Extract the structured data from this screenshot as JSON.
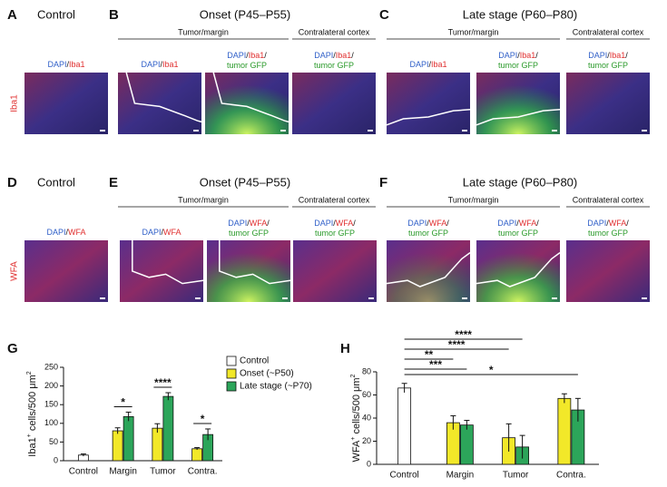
{
  "panels": [
    {
      "letter": "A",
      "title": "Control",
      "side_label": "Iba1",
      "images": [
        [
          "DAPI",
          "/",
          "Iba1"
        ]
      ]
    },
    {
      "letter": "B",
      "title": "Onset (P45–P55)",
      "groups": [
        "Tumor/margin",
        "Contralateral cortex"
      ],
      "images": [
        [
          "DAPI",
          "/",
          "Iba1"
        ],
        [
          "DAPI",
          "/",
          "Iba1",
          "/",
          "tumor GFP"
        ],
        [
          "DAPI",
          "/",
          "Iba1",
          "/",
          "tumor GFP"
        ]
      ]
    },
    {
      "letter": "C",
      "title": "Late stage (P60–P80)",
      "groups": [
        "Tumor/margin",
        "Contralateral cortex"
      ],
      "images": [
        [
          "DAPI",
          "/",
          "Iba1"
        ],
        [
          "DAPI",
          "/",
          "Iba1",
          "/",
          "tumor GFP"
        ],
        [
          "DAPI",
          "/",
          "Iba1",
          "/",
          "tumor GFP"
        ]
      ]
    },
    {
      "letter": "D",
      "title": "Control",
      "side_label": "WFA",
      "images": [
        [
          "DAPI",
          "/",
          "WFA"
        ]
      ]
    },
    {
      "letter": "E",
      "title": "Onset (P45–P55)",
      "groups": [
        "Tumor/margin",
        "Contralateral cortex"
      ],
      "images": [
        [
          "DAPI",
          "/",
          "WFA"
        ],
        [
          "DAPI",
          "/",
          "WFA",
          "/",
          "tumor GFP"
        ],
        [
          "DAPI",
          "/",
          "WFA",
          "/",
          "tumor GFP"
        ]
      ]
    },
    {
      "letter": "F",
      "title": "Late stage (P60–P80)",
      "groups": [
        "Tumor/margin",
        "Contralateral cortex"
      ],
      "images": [
        [
          "DAPI",
          "/",
          "WFA",
          "/",
          "tumor GFP"
        ],
        [
          "DAPI",
          "/",
          "WFA",
          "/",
          "tumor GFP"
        ],
        [
          "DAPI",
          "/",
          "WFA",
          "/",
          "tumor GFP"
        ]
      ]
    }
  ],
  "chart_data": [
    {
      "type": "bar",
      "letter": "G",
      "ylabel": [
        "Iba1",
        "+",
        " cells/500 μm",
        "2"
      ],
      "categories": [
        "Control",
        "Margin",
        "Tumor",
        "Contra."
      ],
      "series": [
        {
          "name": "Control",
          "color": "#ffffff",
          "values": [
            15,
            null,
            null,
            null
          ],
          "errors": [
            3,
            null,
            null,
            null
          ]
        },
        {
          "name": "Onset (~P50)",
          "color": "#f2e829",
          "values": [
            null,
            80,
            87,
            32
          ],
          "errors": [
            null,
            8,
            12,
            3
          ]
        },
        {
          "name": "Late stage (~P70)",
          "color": "#2ca55a",
          "values": [
            null,
            118,
            172,
            70
          ],
          "errors": [
            null,
            12,
            10,
            15
          ]
        }
      ],
      "ylim": [
        0,
        250
      ],
      "yticks": [
        0,
        50,
        100,
        150,
        200,
        250
      ],
      "significance": [
        null,
        "*",
        "****",
        "*"
      ]
    },
    {
      "type": "bar",
      "letter": "H",
      "ylabel": [
        "WFA",
        "+",
        " cells/500 μm",
        "2"
      ],
      "categories": [
        "Control",
        "Margin",
        "Tumor",
        "Contra."
      ],
      "series": [
        {
          "color": "#ffffff",
          "values": [
            66,
            null,
            null,
            null
          ],
          "errors": [
            4,
            null,
            null,
            null
          ]
        },
        {
          "color": "#f2e829",
          "values": [
            null,
            36,
            23,
            57
          ],
          "errors": [
            null,
            6,
            12,
            4
          ]
        },
        {
          "color": "#2ca55a",
          "values": [
            null,
            34,
            15,
            47
          ],
          "errors": [
            null,
            4,
            10,
            10
          ]
        }
      ],
      "ylim": [
        0,
        80
      ],
      "yticks": [
        0,
        20,
        40,
        60,
        80
      ],
      "brackets": [
        {
          "label": "****"
        },
        {
          "label": "****"
        },
        {
          "label": "**"
        },
        {
          "label": "***"
        },
        {
          "label": "*"
        }
      ]
    }
  ]
}
